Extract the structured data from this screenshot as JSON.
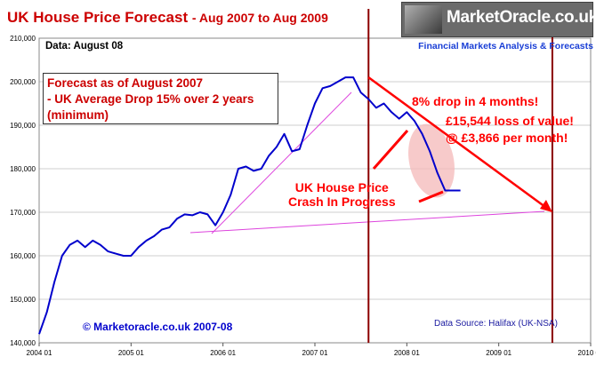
{
  "chart_data": {
    "type": "line",
    "title": "UK House Price Forecast",
    "subtitle": "- Aug 2007 to Aug 2009",
    "xlabel": "",
    "ylabel": "",
    "ylim": [
      140000,
      210000
    ],
    "xlim": [
      "2004-01",
      "2010-01"
    ],
    "y_ticks": [
      "140,000",
      "150,000",
      "160,000",
      "170,000",
      "180,000",
      "190,000",
      "200,000",
      "210,000"
    ],
    "x_ticks": [
      "2004 01",
      "2005 01",
      "2006 01",
      "2007 01",
      "2008 01",
      "2009 01",
      "2010 01"
    ],
    "grid": "horizontal",
    "series": [
      {
        "color": "#0000cc",
        "x": [
          "2004-01",
          "2004-02",
          "2004-03",
          "2004-04",
          "2004-05",
          "2004-06",
          "2004-07",
          "2004-08",
          "2004-09",
          "2004-10",
          "2004-11",
          "2004-12",
          "2005-01",
          "2005-02",
          "2005-03",
          "2005-04",
          "2005-05",
          "2005-06",
          "2005-07",
          "2005-08",
          "2005-09",
          "2005-10",
          "2005-11",
          "2005-12",
          "2006-01",
          "2006-02",
          "2006-03",
          "2006-04",
          "2006-05",
          "2006-06",
          "2006-07",
          "2006-08",
          "2006-09",
          "2006-10",
          "2006-11",
          "2006-12",
          "2007-01",
          "2007-02",
          "2007-03",
          "2007-04",
          "2007-05",
          "2007-06",
          "2007-07",
          "2007-08",
          "2007-09",
          "2007-10",
          "2007-11",
          "2007-12",
          "2008-01",
          "2008-02",
          "2008-03",
          "2008-04",
          "2008-05",
          "2008-06",
          "2008-07",
          "2008-08"
        ],
        "values": [
          142000,
          147000,
          154000,
          160000,
          162500,
          163500,
          162000,
          163500,
          162500,
          161000,
          160500,
          160000,
          160000,
          162000,
          163500,
          164500,
          166000,
          166500,
          168500,
          169500,
          169300,
          170000,
          169500,
          167000,
          170000,
          174000,
          180000,
          180500,
          179500,
          180000,
          183000,
          185000,
          188000,
          184000,
          184500,
          190000,
          195000,
          198500,
          199000,
          200000,
          201000,
          201000,
          197500,
          196000,
          194000,
          195000,
          193000,
          191500,
          193000,
          191000,
          188000,
          184000,
          179000,
          175000,
          175000,
          175000
        ]
      },
      {
        "name": "",
        "color": "#ff0000",
        "values_desc": "forecast line",
        "x": [
          "2007-08",
          "2009-08"
        ],
        "values": [
          201000,
          170000
        ]
      }
    ],
    "vertical_markers": [
      "2007-08",
      "2009-08"
    ]
  },
  "header": {
    "title": "UK House Price Forecast",
    "subtitle": "- Aug 2007 to Aug 2009"
  },
  "brand": {
    "name": "MarketOracle.co.uk",
    "tagline": "Financial Markets Analysis & Forecasts"
  },
  "data_date": "Data: August 08",
  "forecast_box": {
    "line1": "Forecast as of August 2007",
    "line2": "- UK Average Drop 15% over 2 years",
    "line3": "(minimum)"
  },
  "annotations": {
    "drop": "8% drop in 4 months!",
    "loss": "£15,544 loss of value!",
    "per_month": "@ £3,866 per month!",
    "crash_line1": "UK House Price",
    "crash_line2": "Crash In Progress"
  },
  "copyright": "© Marketoracle.co.uk 2007-08",
  "source": "Data Source: Halifax (UK-NSA)",
  "colors": {
    "title": "#cc0000",
    "price_line": "#0000cc",
    "forecast": "#ff0000",
    "trend": "#dd44dd",
    "marker": "#8b0000",
    "crash_ellipse": "#f4b8b8"
  }
}
